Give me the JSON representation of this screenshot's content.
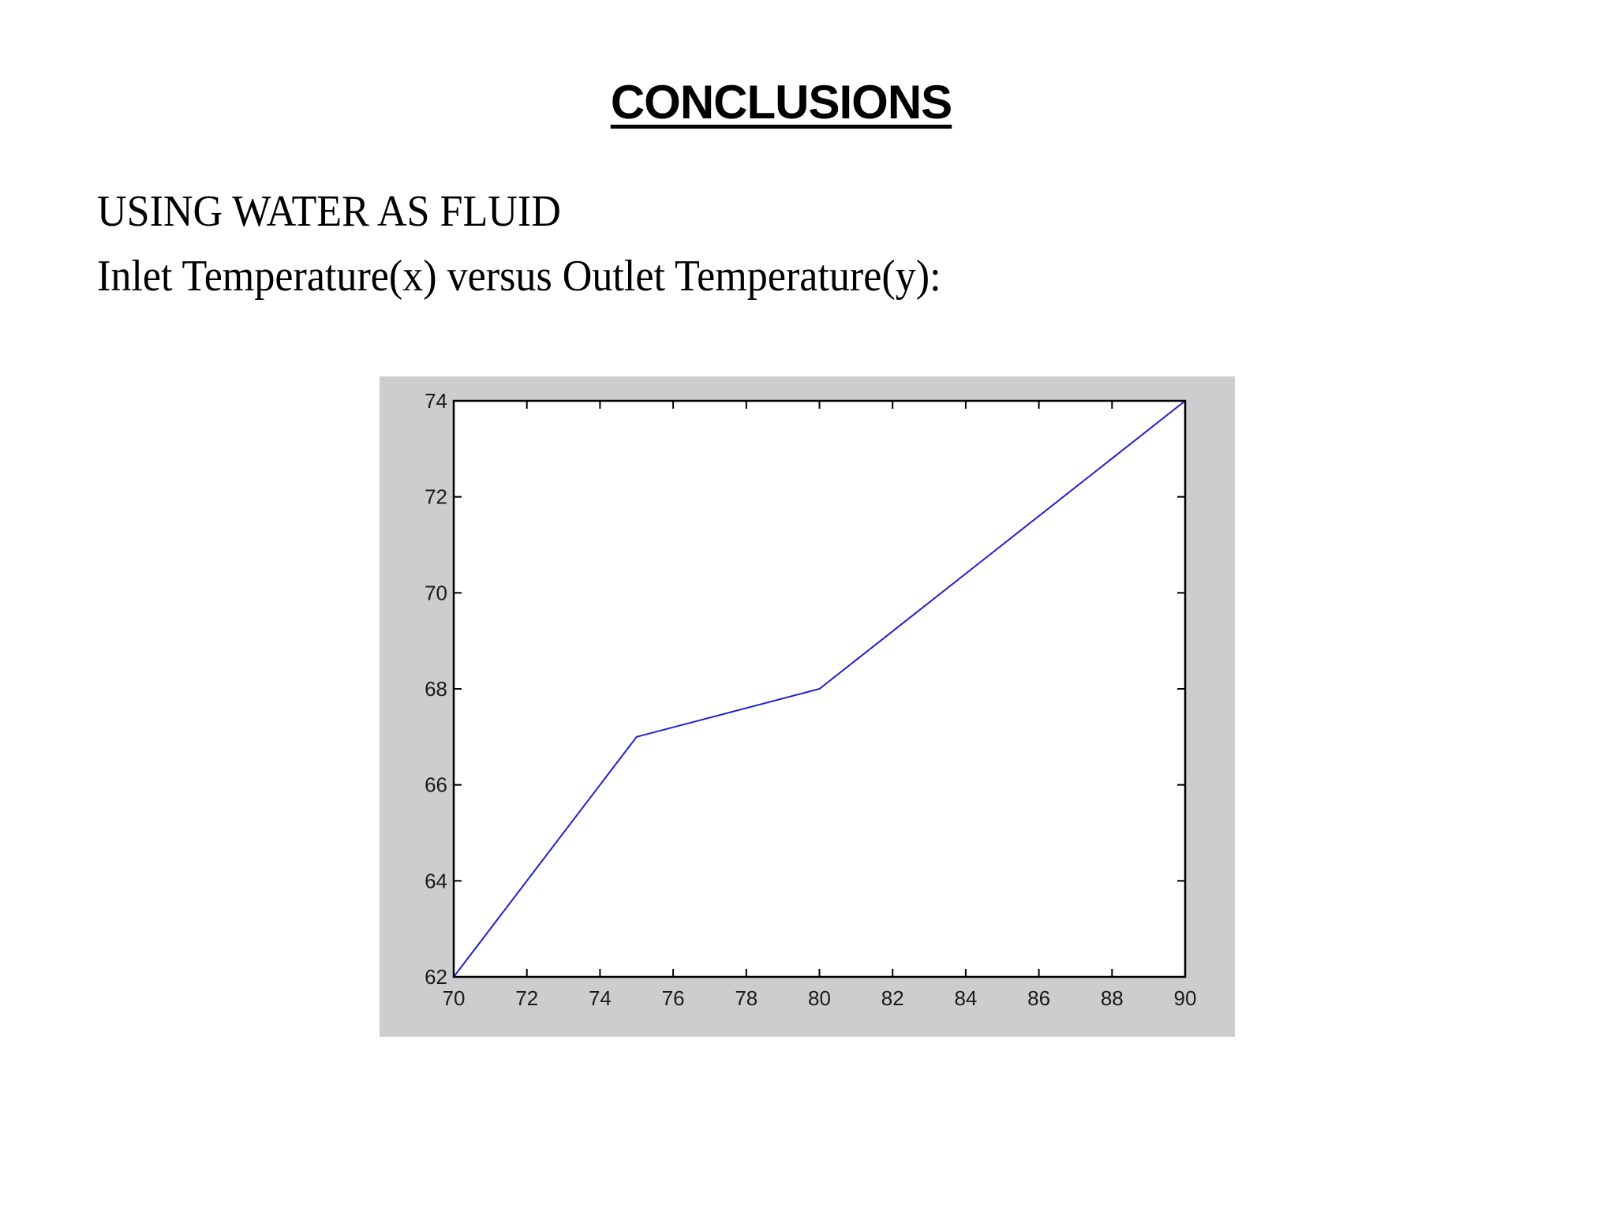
{
  "slide": {
    "title": "CONCLUSIONS",
    "subtitle_line1": "USING WATER AS FLUID",
    "subtitle_line2": "Inlet Temperature(x) versus Outlet Temperature(y):"
  },
  "chart_data": {
    "type": "line",
    "title": "",
    "xlabel": "Inlet Temperature",
    "ylabel": "Outlet Temperature",
    "x": [
      70,
      75,
      80,
      85,
      90
    ],
    "series": [
      {
        "name": "Water",
        "values": [
          62,
          67,
          68,
          71,
          74
        ],
        "color": "#1f1fd6"
      }
    ],
    "xlim": [
      70,
      90
    ],
    "ylim": [
      62,
      74
    ],
    "xticks": [
      70,
      72,
      74,
      76,
      78,
      80,
      82,
      84,
      86,
      88,
      90
    ],
    "yticks": [
      62,
      64,
      66,
      68,
      70,
      72,
      74
    ],
    "grid": false,
    "legend": "none",
    "figure_background": "#cdcdcf",
    "axes_background": "#ffffff"
  }
}
